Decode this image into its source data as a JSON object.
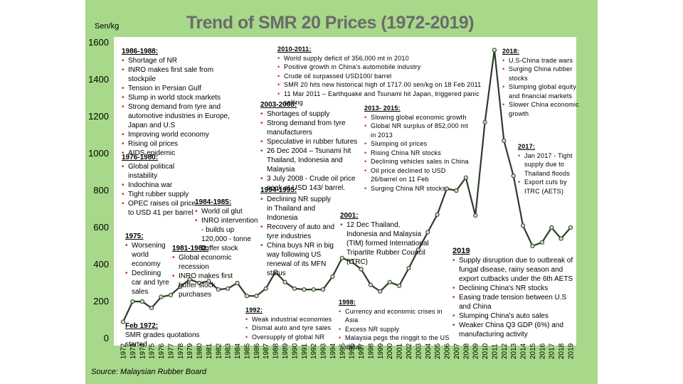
{
  "title": "Trend of SMR 20 Prices (1972-2019)",
  "source": "Source: Malaysian Rubber Board",
  "colors": {
    "frame": "#a8d88a",
    "plot_bg": "#ffffff",
    "line": "#2e3a2e",
    "marker": "#c8e6b0",
    "title": "#6b6b6b",
    "bullet": "#cc2222"
  },
  "chart_data": {
    "type": "line",
    "title": "Trend of SMR 20 Prices (1972-2019)",
    "ylabel": "Sen/kg",
    "xlabel": "",
    "ylim": [
      0,
      1600
    ],
    "yticks": [
      "0",
      "200",
      "400",
      "600",
      "800",
      "1000",
      "1200",
      "1400",
      "1600"
    ],
    "grid": false,
    "x": [
      "1972",
      "1973",
      "1974",
      "1975",
      "1976",
      "1977",
      "1978",
      "1979",
      "1980",
      "1981",
      "1982",
      "1983",
      "1984",
      "1985",
      "1986",
      "1987",
      "1988",
      "1989",
      "1990",
      "1991",
      "1992",
      "1993",
      "1994",
      "1995",
      "1996",
      "1997",
      "1998",
      "1999",
      "2000",
      "2001",
      "2002",
      "2003",
      "2004",
      "2005",
      "2006",
      "2007",
      "2008",
      "2009",
      "2010",
      "2011",
      "2012",
      "2013",
      "2014",
      "2015",
      "2016",
      "2017",
      "2018",
      "2019"
    ],
    "series": [
      {
        "values": [
          90,
          200,
          200,
          165,
          225,
          235,
          280,
          320,
          300,
          310,
          265,
          270,
          300,
          230,
          230,
          270,
          360,
          305,
          270,
          265,
          265,
          265,
          335,
          435,
          415,
          375,
          290,
          255,
          305,
          285,
          380,
          480,
          575,
          670,
          810,
          800,
          870,
          665,
          1170,
          1560,
          1070,
          880,
          610,
          500,
          520,
          600,
          540,
          600
        ]
      }
    ]
  },
  "annotations": {
    "a1986": {
      "heading": "1986-1988:",
      "items": [
        "Shortage of NR",
        "INRO makes first sale from stockpile",
        "Tension in Persian Gulf",
        "Slump in world stock markets",
        "Strong demand from tyre and automotive industries in Europe, Japan and U.S",
        "Improving world economy",
        "Rising oil prices",
        "AIDS epidemic"
      ]
    },
    "a1976": {
      "heading": "1976-1980:",
      "items": [
        "Global political instability",
        "Indochina war",
        "Tight rubber supply",
        "OPEC raises oil price to USD 41 per barrel"
      ]
    },
    "a1984": {
      "heading": "1984-1985:",
      "items": [
        "World oil glut",
        "INRO intervention - builds up 120,000 - tonne buffer stock"
      ]
    },
    "a1975": {
      "heading": "1975:",
      "items": [
        "Worsening world economy",
        "Declining car and tyre sales"
      ]
    },
    "a1981": {
      "heading": "1981-1982:",
      "items": [
        "Global economic recession",
        "INRO makes first buffer stock purchases"
      ]
    },
    "a1972": {
      "heading": "Feb 1972:",
      "items": [
        "SMR grades quotations started"
      ]
    },
    "a2010": {
      "heading": "2010-2011:",
      "items": [
        "World supply deficit of 356,000 mt in 2010",
        "Positive growth in China's automobile industry",
        "Crude oil surpassed USD100/ barrel",
        "SMR 20 hits new historical high of 1717.00 sen/kg on 18 Feb 2011",
        "11 Mar 2011 – Earthquake and Tsunami hit Japan, triggered panic selling"
      ]
    },
    "a2003": {
      "heading": "2003-2008:",
      "items": [
        "Shortages of supply",
        "Strong demand from tyre manufacturers",
        "Speculative in rubber futures",
        "26 Dec 2004 – Tsunami hit Thailand, Indonesia and Malaysia",
        "3 July 2008 - Crude oil price peak at USD 143/ barrel."
      ]
    },
    "a2013": {
      "heading": "2013- 2015:",
      "items": [
        "Slowing global economic growth",
        "Global NR surplus of 852,000 mt in 2013",
        "Slumping oil prices",
        "Rising China NR stocks",
        "Declining vehicles sales in China",
        "Oil price declined to USD 26/barrel on 11 Feb",
        "Surging China NR stocks"
      ]
    },
    "a1994": {
      "heading": "1994-1995:",
      "items": [
        "Declining NR supply in Thailand and Indonesia",
        "Recovery of auto and tyre industries",
        "China buys NR in big way following US renewal of its MFN status"
      ]
    },
    "a2001": {
      "heading": "2001:",
      "items": [
        "12 Dec Thailand, Indonesia and Malaysia (TIM) formed International Tripartite Rubber Council (ITRC)"
      ]
    },
    "a1998": {
      "heading": "1998:",
      "items": [
        "Currency and economic crises in Asia",
        "Excess NR supply",
        "Malaysia pegs the ringgit to the US dollar"
      ]
    },
    "a1992": {
      "heading": "1992:",
      "items": [
        "Weak industrial economies",
        "Dismal auto and tyre sales",
        "Oversupply of global NR"
      ]
    },
    "a2018": {
      "heading": "2018:",
      "items": [
        "U.S-China trade wars",
        "Surging China rubber stocks",
        "Slumping global equity and financial markets",
        "Slower China economic growth"
      ]
    },
    "a2017": {
      "heading": "2017:",
      "items": [
        "Jan 2017 - Tight supply due to Thailand floods",
        "Export cuts by ITRC (AETS)"
      ]
    },
    "a2019": {
      "heading": "2019",
      "items": [
        "Supply disruption due to outbreak of fungal disease, rainy season and export cutbacks under the 6th AETS",
        "Declining China's NR stocks",
        "Easing trade tension between U.S and China",
        "Slumping China's auto sales",
        "Weaker China Q3 GDP (6%) and manufacturing activity"
      ]
    }
  }
}
